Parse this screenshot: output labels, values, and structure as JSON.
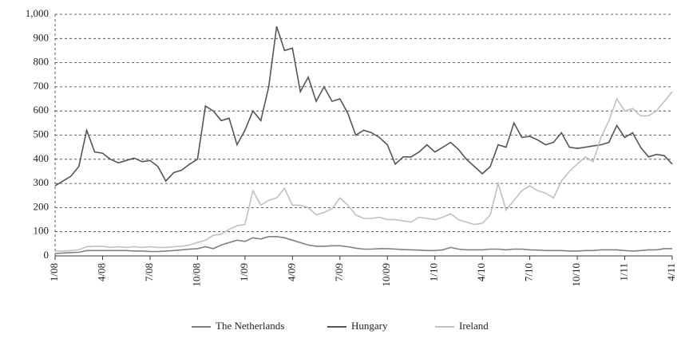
{
  "chart_data": {
    "type": "line",
    "categories": [
      "1/08",
      null,
      null,
      null,
      null,
      null,
      "4/08",
      null,
      null,
      null,
      null,
      null,
      "7/08",
      null,
      null,
      null,
      null,
      null,
      "10/08",
      null,
      null,
      null,
      null,
      null,
      "1/09",
      null,
      null,
      null,
      null,
      null,
      "4/09",
      null,
      null,
      null,
      null,
      null,
      "7/09",
      null,
      null,
      null,
      null,
      null,
      "10/09",
      null,
      null,
      null,
      null,
      null,
      "1/10",
      null,
      null,
      null,
      null,
      null,
      "4/10",
      null,
      null,
      null,
      null,
      null,
      "7/10",
      null,
      null,
      null,
      null,
      null,
      "10/10",
      null,
      null,
      null,
      null,
      null,
      "1/11",
      null,
      null,
      null,
      null,
      null,
      "4/11"
    ],
    "series": [
      {
        "name": "The Netherlands",
        "color": "#808080",
        "values": [
          10,
          12,
          14,
          15,
          22,
          22,
          22,
          22,
          22,
          22,
          20,
          20,
          18,
          18,
          20,
          22,
          25,
          28,
          30,
          38,
          30,
          45,
          55,
          65,
          60,
          75,
          70,
          80,
          80,
          75,
          65,
          55,
          45,
          40,
          40,
          42,
          42,
          38,
          32,
          28,
          28,
          30,
          30,
          28,
          26,
          25,
          24,
          22,
          22,
          25,
          35,
          28,
          25,
          25,
          25,
          28,
          28,
          25,
          28,
          28,
          25,
          24,
          22,
          22,
          22,
          20,
          20,
          22,
          22,
          25,
          25,
          25,
          22,
          20,
          22,
          25,
          25,
          30,
          30
        ]
      },
      {
        "name": "Hungary",
        "color": "#555555",
        "values": [
          290,
          310,
          330,
          370,
          520,
          430,
          425,
          400,
          385,
          395,
          405,
          390,
          395,
          370,
          310,
          345,
          355,
          380,
          400,
          620,
          600,
          560,
          570,
          460,
          520,
          600,
          560,
          700,
          950,
          850,
          860,
          680,
          740,
          640,
          700,
          640,
          650,
          590,
          500,
          520,
          510,
          490,
          460,
          380,
          410,
          410,
          430,
          460,
          430,
          450,
          470,
          440,
          400,
          370,
          340,
          370,
          460,
          450,
          550,
          490,
          495,
          480,
          460,
          470,
          510,
          450,
          445,
          450,
          455,
          460,
          470,
          540,
          490,
          510,
          450,
          410,
          420,
          415,
          380
        ]
      },
      {
        "name": "Ireland",
        "color": "#c0c0c0",
        "values": [
          20,
          20,
          22,
          25,
          38,
          40,
          40,
          35,
          38,
          35,
          38,
          35,
          38,
          35,
          35,
          38,
          40,
          45,
          55,
          65,
          85,
          90,
          110,
          125,
          130,
          270,
          210,
          230,
          240,
          280,
          210,
          210,
          200,
          170,
          180,
          195,
          240,
          210,
          170,
          155,
          155,
          160,
          150,
          150,
          145,
          140,
          160,
          155,
          150,
          160,
          175,
          150,
          140,
          130,
          135,
          170,
          300,
          190,
          230,
          270,
          290,
          270,
          260,
          240,
          310,
          350,
          380,
          410,
          390,
          490,
          560,
          650,
          600,
          610,
          580,
          580,
          600,
          640,
          680
        ]
      }
    ],
    "ylim": [
      0,
      1000
    ],
    "yticks": [
      0,
      100,
      200,
      300,
      400,
      500,
      600,
      700,
      800,
      900,
      {
        "value": 1000,
        "label": "1,000"
      }
    ],
    "grid": true,
    "legend": "bottom"
  }
}
